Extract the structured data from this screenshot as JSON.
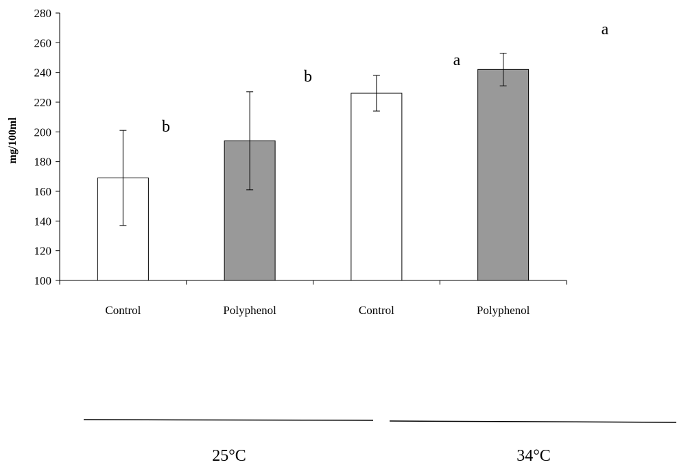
{
  "chart_data": {
    "type": "bar",
    "title": "",
    "xlabel": "",
    "ylabel": "mg/100ml",
    "ylim": [
      100,
      280
    ],
    "yticks": [
      100,
      120,
      140,
      160,
      180,
      200,
      220,
      240,
      260,
      280
    ],
    "categories": [
      "Control",
      "Polyphenol",
      "Control",
      "Polyphenol"
    ],
    "values": [
      169,
      194,
      226,
      242
    ],
    "error": [
      32,
      33,
      12,
      11
    ],
    "bar_colors": [
      "#ffffff",
      "#999999",
      "#ffffff",
      "#999999"
    ],
    "significance": [
      "b",
      "b",
      "a",
      "a"
    ],
    "groups": [
      {
        "label": "25°C",
        "categories": [
          0,
          1
        ]
      },
      {
        "label": "34°C",
        "categories": [
          2,
          3
        ]
      }
    ],
    "grid": false,
    "legend": "none"
  }
}
